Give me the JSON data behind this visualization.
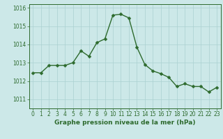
{
  "x": [
    0,
    1,
    2,
    3,
    4,
    5,
    6,
    7,
    8,
    9,
    10,
    11,
    12,
    13,
    14,
    15,
    16,
    17,
    18,
    19,
    20,
    21,
    22,
    23
  ],
  "y": [
    1012.45,
    1012.45,
    1012.85,
    1012.85,
    1012.85,
    1013.0,
    1013.65,
    1013.35,
    1014.1,
    1014.3,
    1015.6,
    1015.65,
    1015.45,
    1013.85,
    1012.9,
    1012.55,
    1012.4,
    1012.2,
    1011.7,
    1011.85,
    1011.7,
    1011.7,
    1011.4,
    1011.65
  ],
  "line_color": "#2d6a2d",
  "marker": "D",
  "marker_size": 2.5,
  "bg_color": "#cce8e8",
  "grid_color": "#aad0d0",
  "title": "Graphe pression niveau de la mer (hPa)",
  "ylim": [
    1010.5,
    1016.2
  ],
  "yticks": [
    1011,
    1012,
    1013,
    1014,
    1015,
    1016
  ],
  "xticks": [
    0,
    1,
    2,
    3,
    4,
    5,
    6,
    7,
    8,
    9,
    10,
    11,
    12,
    13,
    14,
    15,
    16,
    17,
    18,
    19,
    20,
    21,
    22,
    23
  ],
  "tick_fontsize": 5.5,
  "title_fontsize": 6.5,
  "axis_color": "#2d6a2d",
  "line_width": 1.0
}
